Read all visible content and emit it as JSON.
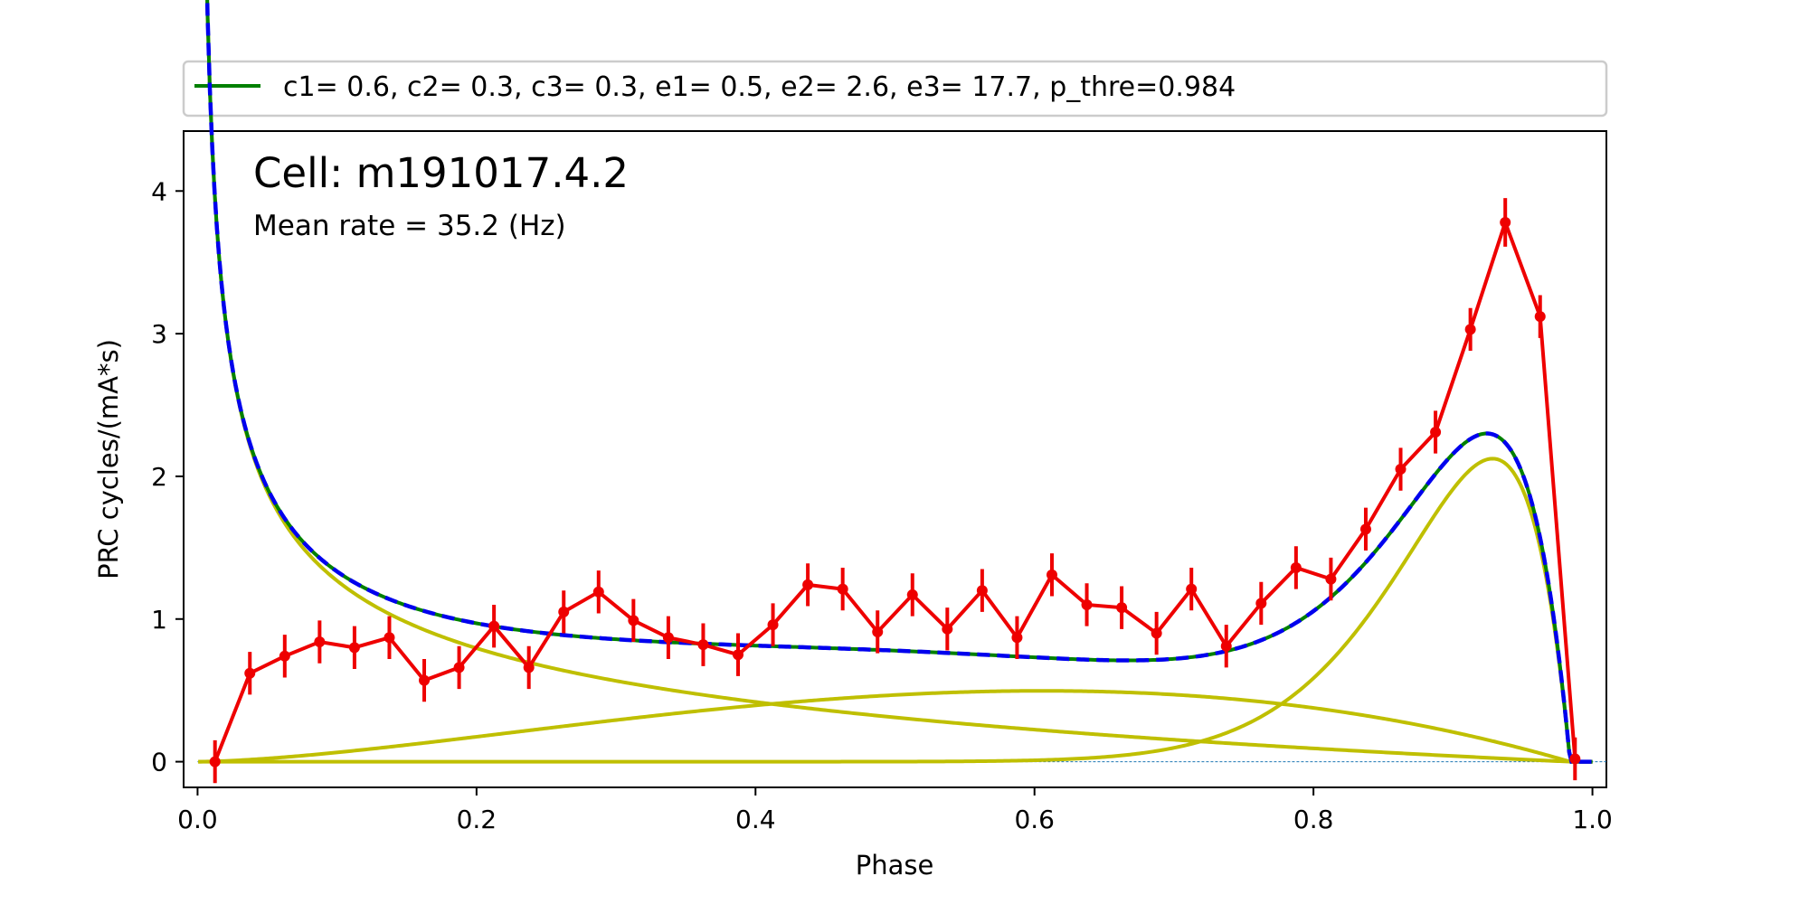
{
  "colors": {
    "data": "#ee0000",
    "fit_total": "#008000",
    "components": "#bfbf00",
    "model": "#0000ee",
    "zero_line": "#1f77b4"
  },
  "legend": {
    "entry": "c1=  0.6, c2=  0.3, c3=  0.3, e1=  0.5, e2=  2.6, e3= 17.7, p_thre=0.984",
    "placement": "top, above plot"
  },
  "annotations": {
    "cell": "Cell: m191017.4.2",
    "rate": "Mean rate = 35.2 (Hz)"
  },
  "chart_data": {
    "type": "line",
    "title": "",
    "xlabel": "Phase",
    "ylabel": "PRC  cycles/(mA*s)",
    "xlim": [
      -0.01,
      1.01
    ],
    "ylim": [
      -0.18,
      4.42
    ],
    "xticks": [
      0.0,
      0.2,
      0.4,
      0.6,
      0.8,
      1.0
    ],
    "xtick_labels": [
      "0.0",
      "0.2",
      "0.4",
      "0.6",
      "0.8",
      "1.0"
    ],
    "yticks": [
      0,
      1,
      2,
      3,
      4
    ],
    "ytick_labels": [
      "0",
      "1",
      "2",
      "3",
      "4"
    ],
    "grid": false,
    "measured_prc": {
      "x": [
        0.0125,
        0.0375,
        0.0625,
        0.0875,
        0.1125,
        0.1375,
        0.1625,
        0.1875,
        0.2125,
        0.2375,
        0.2625,
        0.2875,
        0.3125,
        0.3375,
        0.3625,
        0.3875,
        0.4125,
        0.4375,
        0.4625,
        0.4875,
        0.5125,
        0.5375,
        0.5625,
        0.5875,
        0.6125,
        0.6375,
        0.6625,
        0.6875,
        0.7125,
        0.7375,
        0.7625,
        0.7875,
        0.8125,
        0.8375,
        0.8625,
        0.8875,
        0.9125,
        0.9375,
        0.9625,
        0.9875
      ],
      "y": [
        0.0,
        0.62,
        0.74,
        0.84,
        0.8,
        0.87,
        0.57,
        0.66,
        0.95,
        0.66,
        1.05,
        1.19,
        0.99,
        0.87,
        0.82,
        0.75,
        0.96,
        1.24,
        1.21,
        0.91,
        1.17,
        0.93,
        1.2,
        0.87,
        1.31,
        1.1,
        1.08,
        0.9,
        1.21,
        0.81,
        1.11,
        1.36,
        1.28,
        1.63,
        2.05,
        2.31,
        3.03,
        3.78,
        3.12,
        0.02
      ],
      "err": [
        0.15,
        0.15,
        0.15,
        0.15,
        0.15,
        0.15,
        0.15,
        0.15,
        0.15,
        0.15,
        0.15,
        0.15,
        0.15,
        0.15,
        0.15,
        0.15,
        0.15,
        0.15,
        0.15,
        0.15,
        0.15,
        0.15,
        0.15,
        0.15,
        0.15,
        0.15,
        0.15,
        0.15,
        0.15,
        0.15,
        0.15,
        0.15,
        0.15,
        0.15,
        0.15,
        0.15,
        0.15,
        0.17,
        0.15,
        0.15
      ]
    },
    "fit_params": {
      "c1": 0.6,
      "c2": 0.3,
      "c3": 0.3,
      "e1": 0.5,
      "e2": 2.6,
      "e3": 17.7,
      "p_thre": 0.984
    }
  }
}
